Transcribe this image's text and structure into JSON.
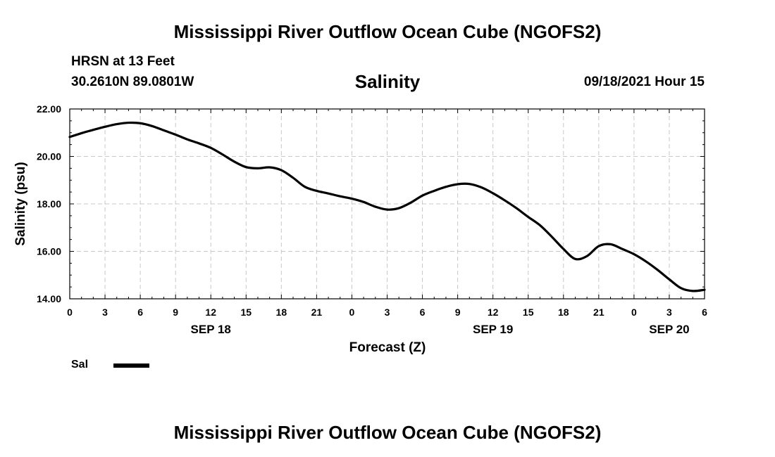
{
  "header": {
    "title": "Mississippi River Outflow Ocean Cube (NGOFS2)",
    "station": "HRSN at 13 Feet",
    "coords": "30.2610N  89.0801W",
    "subtitle": "Salinity",
    "datetime": "09/18/2021 Hour 15"
  },
  "footer": {
    "title": "Mississippi River Outflow Ocean Cube (NGOFS2)"
  },
  "legend": {
    "label": "Sal"
  },
  "chart_data": {
    "type": "line",
    "title": "Salinity",
    "xlabel": "Forecast (Z)",
    "ylabel": "Salinity (psu)",
    "xlim": [
      0,
      54
    ],
    "ylim": [
      14.0,
      22.0
    ],
    "x_ticks": [
      0,
      3,
      6,
      9,
      12,
      15,
      18,
      21,
      24,
      27,
      30,
      33,
      36,
      39,
      42,
      45,
      48,
      51,
      54
    ],
    "x_tick_labels": [
      "0",
      "3",
      "6",
      "9",
      "12",
      "15",
      "18",
      "21",
      "0",
      "3",
      "6",
      "9",
      "12",
      "15",
      "18",
      "21",
      "0",
      "3",
      "6"
    ],
    "y_ticks": [
      14,
      16,
      18,
      20,
      22
    ],
    "y_tick_labels": [
      "14.00",
      "16.00",
      "18.00",
      "20.00",
      "22.00"
    ],
    "date_labels": [
      {
        "x": 12,
        "label": "SEP 18"
      },
      {
        "x": 36,
        "label": "SEP 19"
      },
      {
        "x": 51,
        "label": "SEP 20"
      }
    ],
    "grid": true,
    "series": [
      {
        "name": "Sal",
        "color": "#000000",
        "x": [
          0,
          1,
          2,
          3,
          4,
          5,
          6,
          7,
          8,
          9,
          10,
          11,
          12,
          13,
          14,
          15,
          16,
          17,
          18,
          19,
          20,
          21,
          22,
          23,
          24,
          25,
          26,
          27,
          28,
          29,
          30,
          31,
          32,
          33,
          34,
          35,
          36,
          37,
          38,
          39,
          40,
          41,
          42,
          43,
          44,
          45,
          46,
          47,
          48,
          49,
          50,
          51,
          52,
          53,
          54
        ],
        "y": [
          20.82,
          20.98,
          21.12,
          21.25,
          21.36,
          21.42,
          21.4,
          21.28,
          21.1,
          20.92,
          20.72,
          20.55,
          20.36,
          20.08,
          19.78,
          19.55,
          19.5,
          19.54,
          19.42,
          19.1,
          18.72,
          18.55,
          18.44,
          18.32,
          18.22,
          18.08,
          17.88,
          17.76,
          17.82,
          18.05,
          18.35,
          18.55,
          18.72,
          18.83,
          18.84,
          18.7,
          18.45,
          18.15,
          17.82,
          17.45,
          17.1,
          16.62,
          16.1,
          15.68,
          15.8,
          16.22,
          16.3,
          16.1,
          15.88,
          15.58,
          15.22,
          14.82,
          14.45,
          14.33,
          14.38
        ]
      }
    ]
  }
}
